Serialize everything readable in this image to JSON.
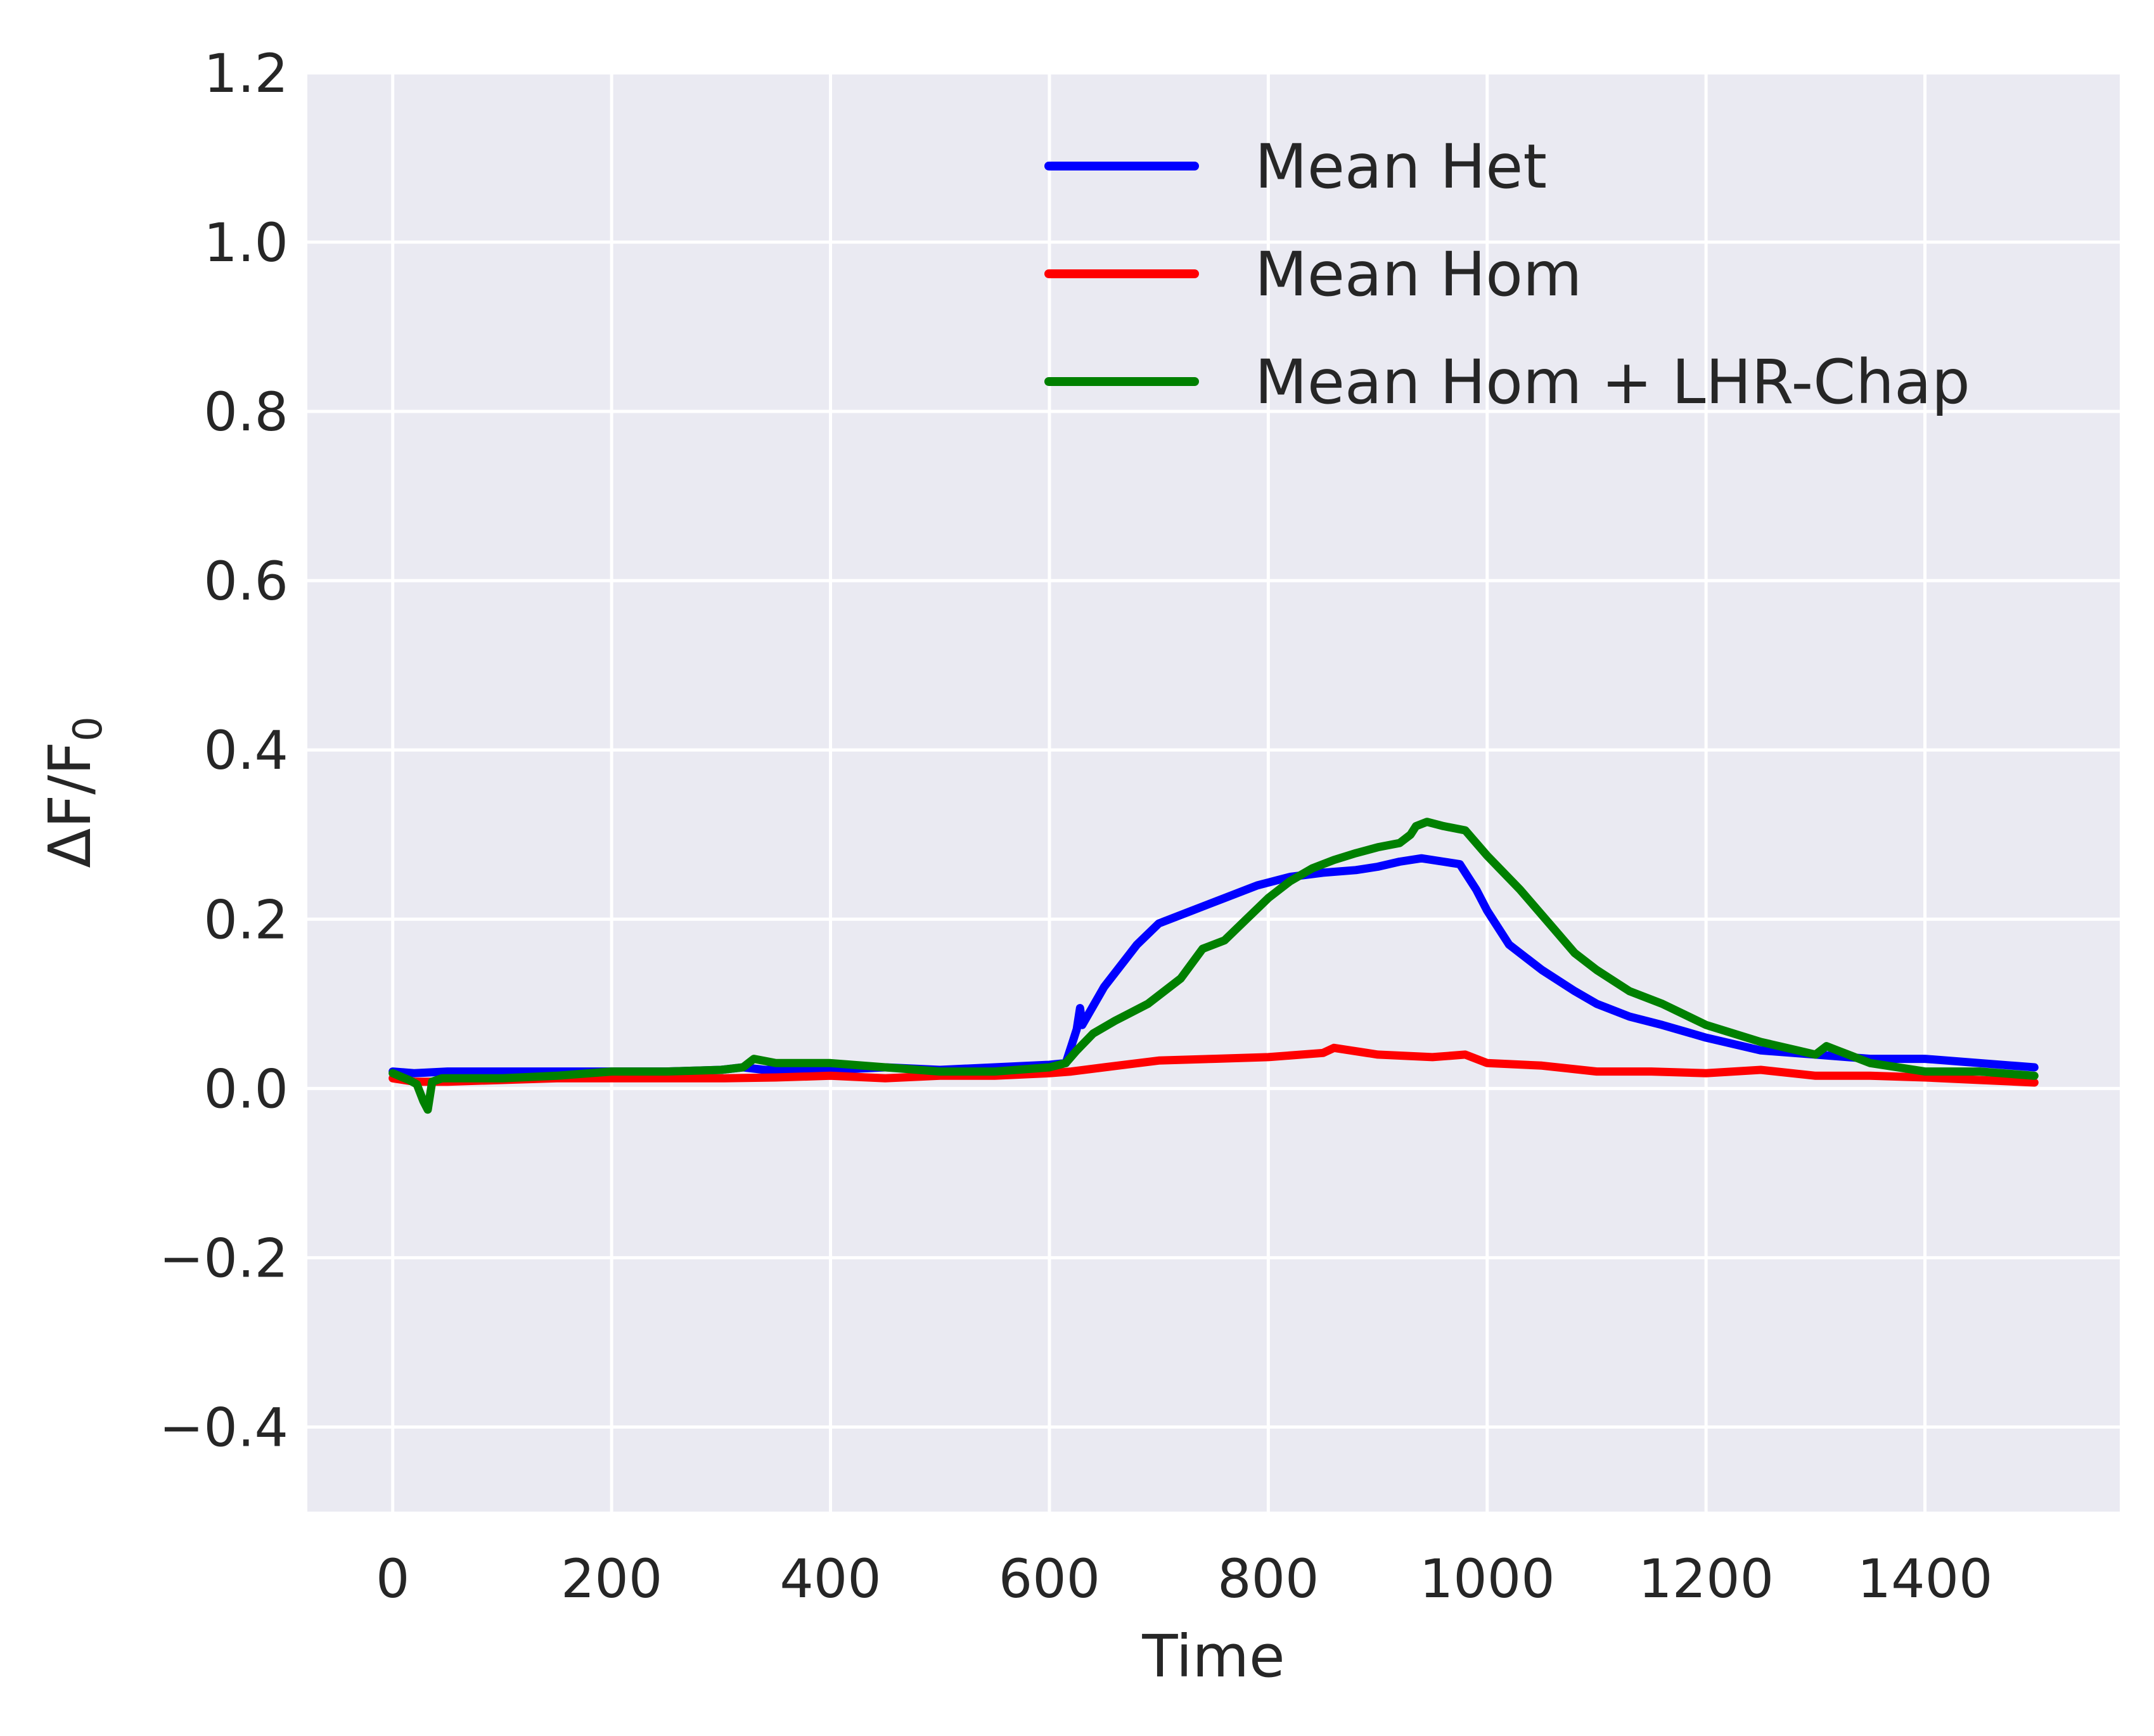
{
  "chart_data": {
    "type": "line",
    "title": "",
    "xlabel": "Time",
    "ylabel": "ΔF/F0",
    "ylabel_main": "ΔF/F",
    "ylabel_sub": "0",
    "xlim": [
      -78,
      1578
    ],
    "ylim": [
      -0.5,
      1.2
    ],
    "xticks": [
      0,
      200,
      400,
      600,
      800,
      1000,
      1200,
      1400
    ],
    "xtick_labels": [
      "0",
      "200",
      "400",
      "600",
      "800",
      "1000",
      "1200",
      "1400"
    ],
    "yticks": [
      -0.4,
      -0.2,
      0.0,
      0.2,
      0.4,
      0.6,
      0.8,
      1.0,
      1.2
    ],
    "ytick_labels": [
      "−0.4",
      "−0.2",
      "0.0",
      "0.2",
      "0.4",
      "0.6",
      "0.8",
      "1.0",
      "1.2"
    ],
    "grid": true,
    "legend_position": "top-right",
    "colors": {
      "background": "#eaeaf2",
      "grid": "#ffffff",
      "text": "#262626"
    },
    "series": [
      {
        "name": "Mean Het",
        "color": "#0000ff",
        "x": [
          0,
          20,
          50,
          100,
          150,
          200,
          250,
          300,
          320,
          340,
          360,
          400,
          450,
          500,
          550,
          600,
          615,
          620,
          625,
          628,
          630,
          650,
          680,
          700,
          730,
          760,
          790,
          820,
          850,
          880,
          900,
          920,
          940,
          960,
          975,
          990,
          1000,
          1020,
          1050,
          1080,
          1100,
          1130,
          1160,
          1200,
          1250,
          1300,
          1350,
          1400,
          1450,
          1500
        ],
        "y": [
          0.02,
          0.018,
          0.02,
          0.02,
          0.02,
          0.02,
          0.02,
          0.022,
          0.025,
          0.022,
          0.022,
          0.022,
          0.025,
          0.022,
          0.025,
          0.028,
          0.03,
          0.05,
          0.07,
          0.095,
          0.075,
          0.12,
          0.17,
          0.195,
          0.21,
          0.225,
          0.24,
          0.25,
          0.255,
          0.258,
          0.262,
          0.268,
          0.272,
          0.268,
          0.265,
          0.235,
          0.21,
          0.17,
          0.14,
          0.115,
          0.1,
          0.085,
          0.075,
          0.06,
          0.045,
          0.04,
          0.035,
          0.035,
          0.03,
          0.025
        ]
      },
      {
        "name": "Mean Hom",
        "color": "#ff0000",
        "x": [
          0,
          20,
          50,
          100,
          150,
          200,
          250,
          300,
          350,
          400,
          450,
          500,
          550,
          600,
          620,
          650,
          700,
          750,
          800,
          850,
          860,
          900,
          950,
          980,
          1000,
          1050,
          1100,
          1150,
          1200,
          1250,
          1300,
          1350,
          1400,
          1450,
          1500
        ],
        "y": [
          0.012,
          0.008,
          0.008,
          0.01,
          0.012,
          0.012,
          0.012,
          0.012,
          0.013,
          0.015,
          0.012,
          0.015,
          0.015,
          0.018,
          0.02,
          0.025,
          0.033,
          0.035,
          0.037,
          0.042,
          0.048,
          0.04,
          0.037,
          0.04,
          0.03,
          0.027,
          0.02,
          0.02,
          0.018,
          0.022,
          0.015,
          0.015,
          0.013,
          0.01,
          0.007
        ]
      },
      {
        "name": "Mean Hom + LHR-Chap",
        "color": "#008000",
        "x": [
          0,
          15,
          22,
          28,
          32,
          36,
          45,
          60,
          100,
          150,
          200,
          250,
          300,
          320,
          330,
          350,
          400,
          450,
          500,
          550,
          600,
          615,
          625,
          640,
          660,
          690,
          720,
          740,
          760,
          780,
          800,
          820,
          840,
          860,
          880,
          900,
          920,
          930,
          935,
          945,
          960,
          980,
          1000,
          1030,
          1060,
          1080,
          1100,
          1130,
          1160,
          1200,
          1250,
          1300,
          1310,
          1320,
          1350,
          1400,
          1450,
          1500
        ],
        "y": [
          0.018,
          0.01,
          0.005,
          -0.015,
          -0.025,
          0.008,
          0.012,
          0.012,
          0.012,
          0.015,
          0.02,
          0.02,
          0.022,
          0.025,
          0.035,
          0.03,
          0.03,
          0.025,
          0.02,
          0.02,
          0.025,
          0.03,
          0.045,
          0.065,
          0.08,
          0.1,
          0.13,
          0.165,
          0.175,
          0.2,
          0.225,
          0.245,
          0.26,
          0.27,
          0.278,
          0.285,
          0.29,
          0.3,
          0.31,
          0.315,
          0.31,
          0.305,
          0.275,
          0.235,
          0.19,
          0.16,
          0.14,
          0.115,
          0.1,
          0.075,
          0.055,
          0.04,
          0.05,
          0.045,
          0.03,
          0.02,
          0.02,
          0.015
        ]
      }
    ]
  }
}
